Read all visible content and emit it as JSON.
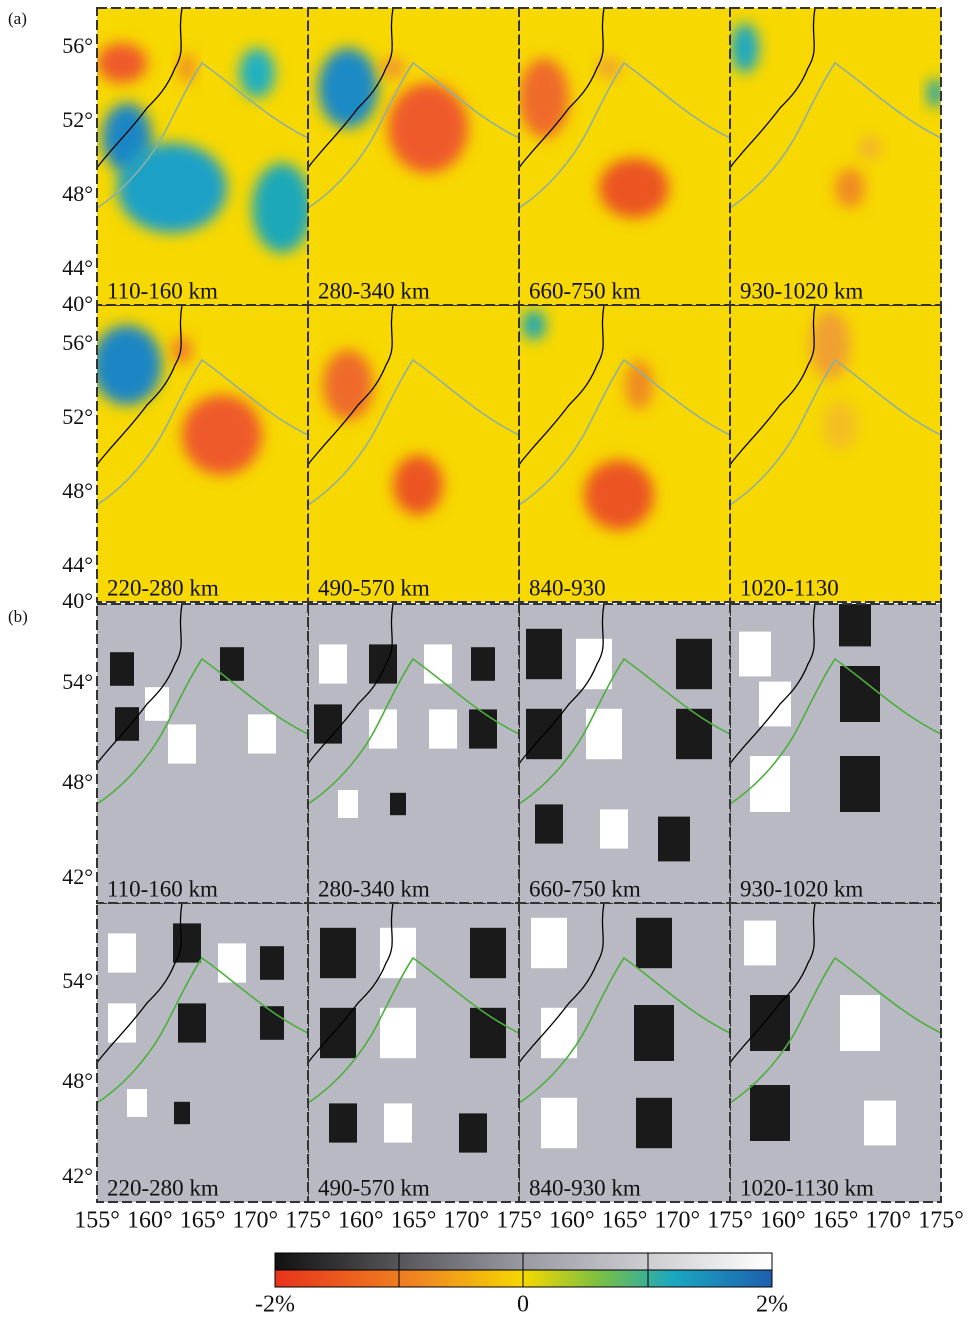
{
  "figure": {
    "parts": [
      {
        "label": "(a)",
        "lat_labels": [
          [
            "56°",
            "52°",
            "48°",
            "44°",
            "40°"
          ],
          [
            "56°",
            "52°",
            "48°",
            "44°",
            "40°"
          ]
        ],
        "panels": [
          [
            "110-160 km",
            "280-340 km",
            "660-750 km",
            "930-1020 km"
          ],
          [
            "220-280 km",
            "490-570 km",
            "840-930",
            "1020-1130"
          ]
        ]
      },
      {
        "label": "(b)",
        "lat_labels": [
          [
            "54°",
            "48°",
            "42°"
          ],
          [
            "54°",
            "48°",
            "42°"
          ]
        ],
        "panels": [
          [
            "110-160 km",
            "280-340 km",
            "660-750 km",
            "930-1020 km"
          ],
          [
            "220-280 km",
            "490-570 km",
            "840-930 km",
            "1020-1130 km"
          ]
        ]
      }
    ],
    "lon_labels": [
      [
        "155°",
        "160°",
        "165°",
        "170°",
        "175°"
      ],
      [
        "160°",
        "165°",
        "170°",
        "175°"
      ],
      [
        "160°",
        "165°",
        "170°",
        "175°"
      ],
      [
        "160°",
        "165°",
        "170°",
        "175°"
      ]
    ],
    "colorbar": {
      "labels": [
        "-2%",
        "0",
        "2%"
      ]
    }
  }
}
